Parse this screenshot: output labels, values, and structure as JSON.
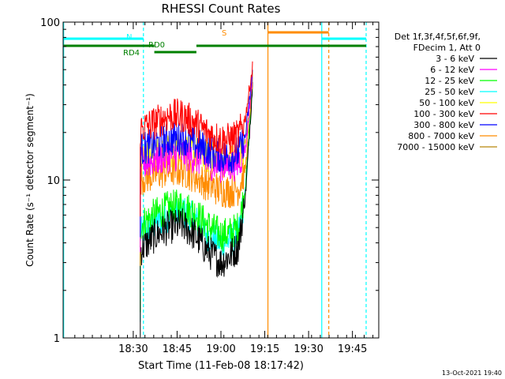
{
  "chart_data": {
    "type": "line",
    "title": "RHESSI Count Rates",
    "xlabel": "Start Time (11-Feb-08 18:17:42)",
    "ylabel": "Count Rate (s⁻¹ detector segment⁻¹)",
    "yscale": "log",
    "ylim": [
      1,
      100
    ],
    "xlim_minutes": [
      18.1,
      19.9
    ],
    "x_ticks": [
      {
        "label": "18:30",
        "min": 18.5
      },
      {
        "label": "18:45",
        "min": 18.75
      },
      {
        "label": "19:00",
        "min": 19.0
      },
      {
        "label": "19:15",
        "min": 19.25
      },
      {
        "label": "19:30",
        "min": 19.5
      },
      {
        "label": "19:45",
        "min": 19.75
      }
    ],
    "y_ticks": [
      {
        "label": "1",
        "value": 1
      },
      {
        "label": "10",
        "value": 10
      },
      {
        "label": "100",
        "value": 100
      }
    ],
    "legend": {
      "placement": "right",
      "header": [
        "Det 1f,3f,4f,5f,6f,9f,",
        "FDecim 1, Att 0"
      ]
    },
    "series": [
      {
        "name": "3 - 6 keV",
        "color": "#000000",
        "points": [
          [
            18.54,
            3.6
          ],
          [
            18.62,
            4.4
          ],
          [
            18.7,
            5.0
          ],
          [
            18.78,
            5.2
          ],
          [
            18.85,
            4.5
          ],
          [
            18.92,
            3.6
          ],
          [
            19.0,
            3.0
          ],
          [
            19.05,
            3.3
          ],
          [
            19.1,
            3.8
          ],
          [
            19.14,
            8
          ],
          [
            19.18,
            40
          ]
        ]
      },
      {
        "name": "6 - 12 keV",
        "color": "#ff00ff",
        "points": [
          [
            18.54,
            12.5
          ],
          [
            18.62,
            13.5
          ],
          [
            18.7,
            14.2
          ],
          [
            18.78,
            14.8
          ],
          [
            18.85,
            14.0
          ],
          [
            18.92,
            13.0
          ],
          [
            19.0,
            12.3
          ],
          [
            19.05,
            12.3
          ],
          [
            19.1,
            12.8
          ],
          [
            19.14,
            16
          ],
          [
            19.18,
            45
          ]
        ]
      },
      {
        "name": "12 - 25 keV",
        "color": "#00ff00",
        "points": [
          [
            18.54,
            5.2
          ],
          [
            18.62,
            6.0
          ],
          [
            18.7,
            6.7
          ],
          [
            18.78,
            6.9
          ],
          [
            18.85,
            6.2
          ],
          [
            18.92,
            5.2
          ],
          [
            19.0,
            4.5
          ],
          [
            19.05,
            4.6
          ],
          [
            19.1,
            5.0
          ],
          [
            19.14,
            9
          ],
          [
            19.18,
            42
          ]
        ]
      },
      {
        "name": "25 - 50 keV",
        "color": "#00ffff",
        "points": [
          [
            18.54,
            4.5
          ],
          [
            18.62,
            5.3
          ],
          [
            18.7,
            6.0
          ],
          [
            18.78,
            6.3
          ],
          [
            18.85,
            5.6
          ],
          [
            18.92,
            4.6
          ],
          [
            19.0,
            4.0
          ],
          [
            19.05,
            4.1
          ],
          [
            19.1,
            4.5
          ],
          [
            19.14,
            8.5
          ],
          [
            19.18,
            41
          ]
        ]
      },
      {
        "name": "50 - 100 keV",
        "color": "#ffff00",
        "points": [
          [
            18.54,
            13.5
          ],
          [
            18.62,
            14.5
          ],
          [
            18.7,
            15.2
          ],
          [
            18.78,
            16
          ],
          [
            18.85,
            15
          ],
          [
            18.92,
            14
          ],
          [
            19.0,
            13.2
          ],
          [
            19.05,
            13.2
          ],
          [
            19.1,
            13.6
          ],
          [
            19.14,
            17
          ],
          [
            19.18,
            46
          ]
        ]
      },
      {
        "name": "100 - 300 keV",
        "color": "#ff0000",
        "points": [
          [
            18.54,
            21
          ],
          [
            18.62,
            23
          ],
          [
            18.7,
            25.5
          ],
          [
            18.78,
            25.5
          ],
          [
            18.85,
            23
          ],
          [
            18.92,
            20
          ],
          [
            19.0,
            18
          ],
          [
            19.05,
            18
          ],
          [
            19.1,
            19
          ],
          [
            19.14,
            25
          ],
          [
            19.18,
            52
          ]
        ]
      },
      {
        "name": "300 - 800 keV",
        "color": "#0000ff",
        "points": [
          [
            18.54,
            15.5
          ],
          [
            18.62,
            16.8
          ],
          [
            18.7,
            18.0
          ],
          [
            18.78,
            18.5
          ],
          [
            18.85,
            17
          ],
          [
            18.92,
            15.5
          ],
          [
            19.0,
            14.2
          ],
          [
            19.05,
            14.0
          ],
          [
            19.1,
            14.8
          ],
          [
            19.14,
            19
          ],
          [
            19.18,
            47
          ]
        ]
      },
      {
        "name": "800 - 7000 keV",
        "color": "#ff8c00",
        "points": [
          [
            18.54,
            10.2
          ],
          [
            18.62,
            10.8
          ],
          [
            18.7,
            11.5
          ],
          [
            18.78,
            11.5
          ],
          [
            18.85,
            10.6
          ],
          [
            18.92,
            9.4
          ],
          [
            19.0,
            8.6
          ],
          [
            19.05,
            8.5
          ],
          [
            19.1,
            8.8
          ],
          [
            19.14,
            12
          ],
          [
            19.18,
            44
          ]
        ]
      },
      {
        "name": "7000 - 15000 keV",
        "color": "#b8860b",
        "points": []
      }
    ],
    "annotations": [
      {
        "label": "N",
        "color": "#00ffff"
      },
      {
        "label": "RD0",
        "color": "#008000"
      },
      {
        "label": "RD4",
        "color": "#008000"
      },
      {
        "label": "S",
        "color": "#ff8c00"
      }
    ],
    "timestamp": "13-Oct-2021 19:40",
    "colors": {
      "background": "#000000",
      "plot_background": "#ffffff",
      "axis": "#000000",
      "night": "#00ffff",
      "attenuator": "#008000",
      "saa": "#ff8c00"
    }
  }
}
